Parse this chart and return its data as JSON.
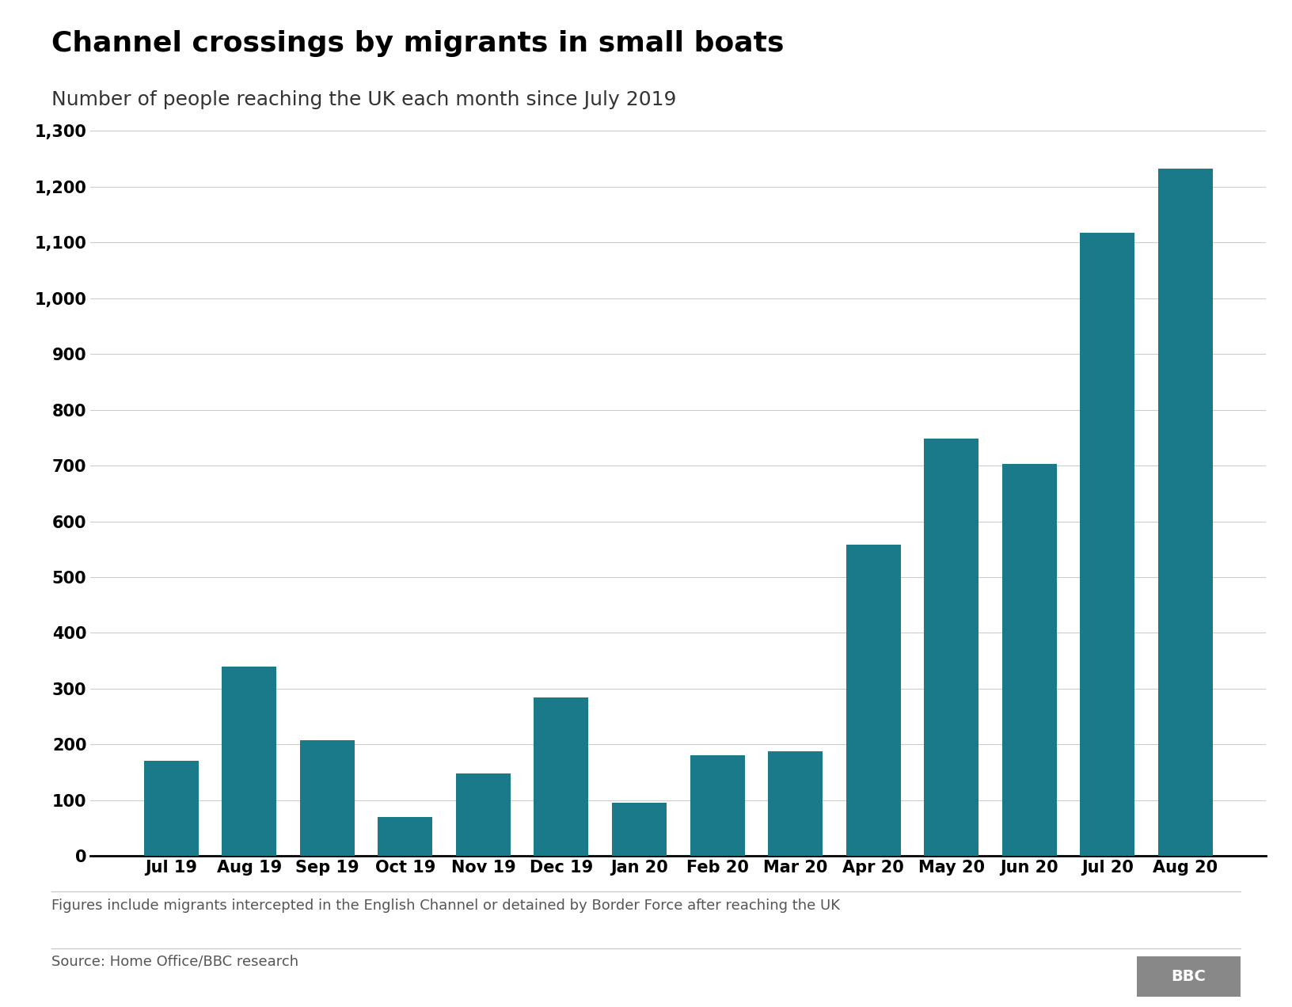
{
  "title": "Channel crossings by migrants in small boats",
  "subtitle": "Number of people reaching the UK each month since July 2019",
  "footnote": "Figures include migrants intercepted in the English Channel or detained by Border Force after reaching the UK",
  "source": "Source: Home Office/BBC research",
  "categories": [
    "Jul 19",
    "Aug 19",
    "Sep 19",
    "Oct 19",
    "Nov 19",
    "Dec 19",
    "Jan 20",
    "Feb 20",
    "Mar 20",
    "Apr 20",
    "May 20",
    "Jun 20",
    "Jul 20",
    "Aug 20"
  ],
  "values": [
    170,
    340,
    207,
    70,
    148,
    284,
    95,
    181,
    188,
    558,
    749,
    703,
    1117,
    1233
  ],
  "bar_color": "#1a7a8a",
  "background_color": "#ffffff",
  "ylim": [
    0,
    1300
  ],
  "yticks": [
    0,
    100,
    200,
    300,
    400,
    500,
    600,
    700,
    800,
    900,
    1000,
    1100,
    1200,
    1300
  ],
  "ytick_labels": [
    "0",
    "100",
    "200",
    "300",
    "400",
    "500",
    "600",
    "700",
    "800",
    "900",
    "1,000",
    "1,100",
    "1,200",
    "1,300"
  ],
  "title_fontsize": 26,
  "subtitle_fontsize": 18,
  "tick_fontsize": 15,
  "footnote_fontsize": 13,
  "source_fontsize": 13
}
